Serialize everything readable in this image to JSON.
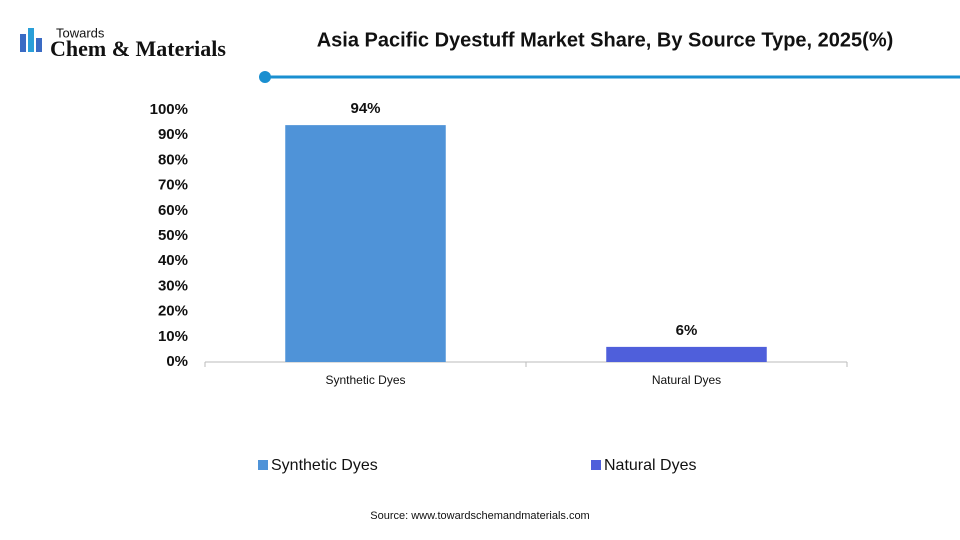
{
  "logo": {
    "line1": "Towards",
    "line2": "Chem & Materials"
  },
  "chart_data": {
    "type": "bar",
    "title": "Asia Pacific Dyestuff Market Share, By Source Type, 2025(%)",
    "categories": [
      "Synthetic Dyes",
      "Natural Dyes"
    ],
    "values": [
      94,
      6
    ],
    "value_labels": [
      "94%",
      "6%"
    ],
    "colors": [
      "#4f93d8",
      "#4f5fdb"
    ],
    "ylim": [
      0,
      100
    ],
    "yticks": [
      {
        "value": 0,
        "label": "0%"
      },
      {
        "value": 10,
        "label": "10%"
      },
      {
        "value": 20,
        "label": "20%"
      },
      {
        "value": 30,
        "label": "30%"
      },
      {
        "value": 40,
        "label": "40%"
      },
      {
        "value": 50,
        "label": "50%"
      },
      {
        "value": 60,
        "label": "60%"
      },
      {
        "value": 70,
        "label": "70%"
      },
      {
        "value": 80,
        "label": "80%"
      },
      {
        "value": 90,
        "label": "90%"
      },
      {
        "value": 100,
        "label": "100%"
      }
    ],
    "grid": false,
    "source": "Source: www.towardschemandmaterials.com"
  }
}
